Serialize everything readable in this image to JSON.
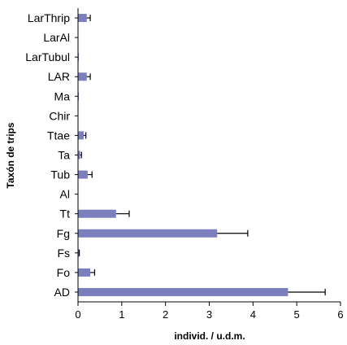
{
  "chart_data": {
    "type": "bar",
    "orientation": "horizontal",
    "categories": [
      "LarThrip",
      "LarAl",
      "LarTubul",
      "LAR",
      "Ma",
      "Chir",
      "Ttae",
      "Ta",
      "Tub",
      "Al",
      "Tt",
      "Fg",
      "Fs",
      "Fo",
      "AD"
    ],
    "values": [
      0.2,
      0.0,
      0.01,
      0.2,
      0.01,
      0.0,
      0.13,
      0.05,
      0.22,
      0.0,
      0.87,
      3.18,
      0.02,
      0.28,
      4.8
    ],
    "errors": [
      0.08,
      0.0,
      0.0,
      0.08,
      0.0,
      0.0,
      0.05,
      0.03,
      0.1,
      0.0,
      0.3,
      0.7,
      0.01,
      0.1,
      0.85
    ],
    "xlabel": "individ. / u.d.m.",
    "ylabel": "Taxón de trips",
    "xlim": [
      0,
      6
    ],
    "xticks": [
      0,
      1,
      2,
      3,
      4,
      5,
      6
    ],
    "grid": false,
    "bar_color": "#7b7fbd",
    "error_bar_color": "#000000",
    "axis_color": "#000000"
  }
}
